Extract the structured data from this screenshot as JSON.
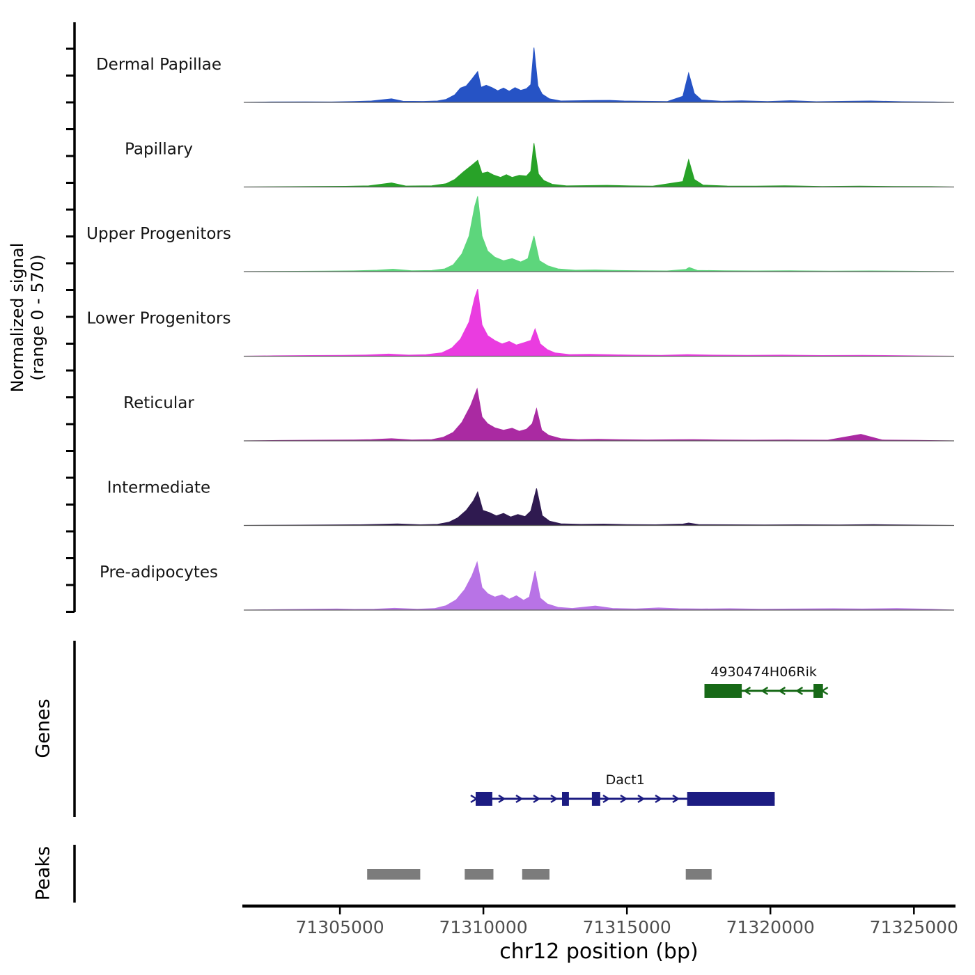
{
  "figure": {
    "y_axis_label_line1": "Normalized signal",
    "y_axis_label_line2": "(range 0 - 570)",
    "genes_section_label": "Genes",
    "peaks_section_label": "Peaks",
    "x_axis_title": "chr12 position (bp)",
    "colors": {
      "background": "#ffffff",
      "axis": "#000000",
      "track_baseline": "#5e5e5e",
      "tick_label": "#4f4f4f",
      "peak_region": "#7c7c7c"
    }
  },
  "chart_data": {
    "type": "area",
    "chromosome": "chr12",
    "x_domain": [
      71301650,
      71326400
    ],
    "x_ticks": [
      71305000,
      71310000,
      71315000,
      71320000,
      71325000
    ],
    "x_tick_labels": [
      "71305000",
      "71310000",
      "71315000",
      "71320000",
      "71325000"
    ],
    "xlabel": "chr12 position (bp)",
    "ylabel": "Normalized signal (range 0 - 570)",
    "y_range_per_track": [
      0,
      570
    ],
    "grid": false,
    "tracks": [
      {
        "name": "Dermal Papillae",
        "color": "#2653c5",
        "points": [
          [
            71302600,
            3
          ],
          [
            71303800,
            4
          ],
          [
            71304700,
            3
          ],
          [
            71305500,
            6
          ],
          [
            71306100,
            10
          ],
          [
            71306800,
            26
          ],
          [
            71307200,
            8
          ],
          [
            71307900,
            7
          ],
          [
            71308400,
            10
          ],
          [
            71308700,
            22
          ],
          [
            71309000,
            55
          ],
          [
            71309200,
            105
          ],
          [
            71309400,
            120
          ],
          [
            71309600,
            170
          ],
          [
            71309800,
            225
          ],
          [
            71309920,
            110
          ],
          [
            71310100,
            125
          ],
          [
            71310300,
            108
          ],
          [
            71310500,
            85
          ],
          [
            71310700,
            105
          ],
          [
            71310900,
            82
          ],
          [
            71311100,
            108
          ],
          [
            71311300,
            88
          ],
          [
            71311500,
            100
          ],
          [
            71311650,
            130
          ],
          [
            71311760,
            400
          ],
          [
            71311900,
            120
          ],
          [
            71312050,
            60
          ],
          [
            71312300,
            26
          ],
          [
            71312700,
            10
          ],
          [
            71313300,
            12
          ],
          [
            71313900,
            14
          ],
          [
            71314400,
            15
          ],
          [
            71314900,
            10
          ],
          [
            71315600,
            8
          ],
          [
            71316400,
            6
          ],
          [
            71316950,
            45
          ],
          [
            71317150,
            215
          ],
          [
            71317350,
            65
          ],
          [
            71317600,
            18
          ],
          [
            71318300,
            8
          ],
          [
            71319000,
            11
          ],
          [
            71319900,
            6
          ],
          [
            71320700,
            12
          ],
          [
            71321600,
            5
          ],
          [
            71322700,
            8
          ],
          [
            71323500,
            10
          ],
          [
            71324600,
            5
          ],
          [
            71325700,
            3
          ]
        ]
      },
      {
        "name": "Papillary",
        "color": "#28a228",
        "points": [
          [
            71302800,
            2
          ],
          [
            71304100,
            4
          ],
          [
            71305200,
            5
          ],
          [
            71306000,
            8
          ],
          [
            71306800,
            30
          ],
          [
            71307300,
            7
          ],
          [
            71308200,
            9
          ],
          [
            71308700,
            24
          ],
          [
            71309000,
            55
          ],
          [
            71309300,
            110
          ],
          [
            71309600,
            160
          ],
          [
            71309800,
            195
          ],
          [
            71309950,
            100
          ],
          [
            71310150,
            110
          ],
          [
            71310350,
            88
          ],
          [
            71310600,
            70
          ],
          [
            71310800,
            90
          ],
          [
            71311000,
            70
          ],
          [
            71311250,
            85
          ],
          [
            71311500,
            80
          ],
          [
            71311650,
            115
          ],
          [
            71311760,
            320
          ],
          [
            71311920,
            95
          ],
          [
            71312100,
            48
          ],
          [
            71312400,
            20
          ],
          [
            71312900,
            8
          ],
          [
            71313600,
            10
          ],
          [
            71314300,
            12
          ],
          [
            71315100,
            8
          ],
          [
            71315900,
            6
          ],
          [
            71316950,
            40
          ],
          [
            71317150,
            200
          ],
          [
            71317350,
            55
          ],
          [
            71317650,
            14
          ],
          [
            71318500,
            7
          ],
          [
            71319500,
            6
          ],
          [
            71320500,
            9
          ],
          [
            71321800,
            4
          ],
          [
            71323100,
            6
          ],
          [
            71324300,
            4
          ],
          [
            71325600,
            3
          ]
        ]
      },
      {
        "name": "Upper Progenitors",
        "color": "#5dd67c",
        "points": [
          [
            71303000,
            2
          ],
          [
            71304500,
            4
          ],
          [
            71305600,
            6
          ],
          [
            71306300,
            10
          ],
          [
            71306850,
            18
          ],
          [
            71307500,
            6
          ],
          [
            71308200,
            8
          ],
          [
            71308650,
            20
          ],
          [
            71308950,
            50
          ],
          [
            71309250,
            130
          ],
          [
            71309500,
            260
          ],
          [
            71309700,
            480
          ],
          [
            71309800,
            550
          ],
          [
            71309950,
            260
          ],
          [
            71310150,
            150
          ],
          [
            71310400,
            105
          ],
          [
            71310700,
            80
          ],
          [
            71311000,
            95
          ],
          [
            71311300,
            70
          ],
          [
            71311550,
            95
          ],
          [
            71311760,
            260
          ],
          [
            71311950,
            80
          ],
          [
            71312250,
            42
          ],
          [
            71312600,
            20
          ],
          [
            71313200,
            10
          ],
          [
            71313900,
            12
          ],
          [
            71314700,
            8
          ],
          [
            71315500,
            6
          ],
          [
            71316400,
            5
          ],
          [
            71317050,
            16
          ],
          [
            71317170,
            30
          ],
          [
            71317450,
            9
          ],
          [
            71318400,
            6
          ],
          [
            71319500,
            5
          ],
          [
            71320700,
            6
          ],
          [
            71322100,
            4
          ],
          [
            71323500,
            5
          ],
          [
            71324900,
            3
          ]
        ]
      },
      {
        "name": "Lower Progenitors",
        "color": "#ea3ce0",
        "points": [
          [
            71302700,
            3
          ],
          [
            71304000,
            5
          ],
          [
            71305100,
            6
          ],
          [
            71305900,
            9
          ],
          [
            71306700,
            16
          ],
          [
            71307400,
            8
          ],
          [
            71308000,
            11
          ],
          [
            71308550,
            25
          ],
          [
            71308900,
            60
          ],
          [
            71309200,
            125
          ],
          [
            71309500,
            250
          ],
          [
            71309700,
            430
          ],
          [
            71309800,
            490
          ],
          [
            71309950,
            230
          ],
          [
            71310150,
            150
          ],
          [
            71310400,
            115
          ],
          [
            71310650,
            90
          ],
          [
            71310900,
            108
          ],
          [
            71311150,
            82
          ],
          [
            71311400,
            98
          ],
          [
            71311650,
            115
          ],
          [
            71311800,
            200
          ],
          [
            71311980,
            90
          ],
          [
            71312230,
            48
          ],
          [
            71312500,
            24
          ],
          [
            71313000,
            12
          ],
          [
            71313700,
            14
          ],
          [
            71314400,
            11
          ],
          [
            71315200,
            8
          ],
          [
            71316200,
            6
          ],
          [
            71317100,
            12
          ],
          [
            71318000,
            8
          ],
          [
            71319200,
            6
          ],
          [
            71320400,
            8
          ],
          [
            71321800,
            5
          ],
          [
            71323200,
            6
          ],
          [
            71324600,
            4
          ]
        ]
      },
      {
        "name": "Reticular",
        "color": "#aa2aa2",
        "points": [
          [
            71302900,
            3
          ],
          [
            71304300,
            5
          ],
          [
            71305400,
            6
          ],
          [
            71306100,
            9
          ],
          [
            71306800,
            16
          ],
          [
            71307500,
            6
          ],
          [
            71308200,
            9
          ],
          [
            71308600,
            26
          ],
          [
            71308950,
            62
          ],
          [
            71309250,
            135
          ],
          [
            71309550,
            255
          ],
          [
            71309780,
            380
          ],
          [
            71309950,
            175
          ],
          [
            71310150,
            125
          ],
          [
            71310400,
            95
          ],
          [
            71310700,
            78
          ],
          [
            71311000,
            92
          ],
          [
            71311250,
            70
          ],
          [
            71311500,
            85
          ],
          [
            71311700,
            125
          ],
          [
            71311850,
            235
          ],
          [
            71312030,
            78
          ],
          [
            71312280,
            40
          ],
          [
            71312700,
            16
          ],
          [
            71313300,
            9
          ],
          [
            71314000,
            11
          ],
          [
            71314800,
            8
          ],
          [
            71315700,
            6
          ],
          [
            71316700,
            8
          ],
          [
            71317300,
            9
          ],
          [
            71318200,
            6
          ],
          [
            71319400,
            5
          ],
          [
            71320600,
            6
          ],
          [
            71322000,
            5
          ],
          [
            71323150,
            48
          ],
          [
            71323900,
            6
          ],
          [
            71325100,
            4
          ]
        ]
      },
      {
        "name": "Intermediate",
        "color": "#2f1a50",
        "points": [
          [
            71303100,
            2
          ],
          [
            71304600,
            4
          ],
          [
            71305700,
            5
          ],
          [
            71306400,
            8
          ],
          [
            71307000,
            11
          ],
          [
            71307800,
            5
          ],
          [
            71308400,
            8
          ],
          [
            71308800,
            24
          ],
          [
            71309100,
            55
          ],
          [
            71309400,
            110
          ],
          [
            71309650,
            180
          ],
          [
            71309800,
            245
          ],
          [
            71309980,
            110
          ],
          [
            71310200,
            95
          ],
          [
            71310450,
            70
          ],
          [
            71310700,
            88
          ],
          [
            71310950,
            62
          ],
          [
            71311200,
            80
          ],
          [
            71311450,
            65
          ],
          [
            71311650,
            105
          ],
          [
            71311850,
            270
          ],
          [
            71312050,
            72
          ],
          [
            71312300,
            32
          ],
          [
            71312700,
            12
          ],
          [
            71313400,
            8
          ],
          [
            71314200,
            10
          ],
          [
            71315000,
            6
          ],
          [
            71316000,
            5
          ],
          [
            71316950,
            10
          ],
          [
            71317150,
            18
          ],
          [
            71317500,
            6
          ],
          [
            71318600,
            5
          ],
          [
            71319800,
            4
          ],
          [
            71321000,
            5
          ],
          [
            71322400,
            4
          ],
          [
            71323600,
            6
          ],
          [
            71325000,
            3
          ]
        ]
      },
      {
        "name": "Pre-adipocytes",
        "color": "#b873e6",
        "points": [
          [
            71302700,
            3
          ],
          [
            71304100,
            6
          ],
          [
            71304900,
            8
          ],
          [
            71305500,
            5
          ],
          [
            71306200,
            6
          ],
          [
            71306900,
            13
          ],
          [
            71307700,
            6
          ],
          [
            71308300,
            11
          ],
          [
            71308700,
            32
          ],
          [
            71309050,
            75
          ],
          [
            71309350,
            150
          ],
          [
            71309600,
            250
          ],
          [
            71309780,
            350
          ],
          [
            71309950,
            165
          ],
          [
            71310150,
            120
          ],
          [
            71310400,
            95
          ],
          [
            71310650,
            112
          ],
          [
            71310900,
            80
          ],
          [
            71311150,
            105
          ],
          [
            71311400,
            72
          ],
          [
            71311600,
            95
          ],
          [
            71311800,
            285
          ],
          [
            71311980,
            88
          ],
          [
            71312230,
            45
          ],
          [
            71312600,
            20
          ],
          [
            71313100,
            12
          ],
          [
            71313900,
            30
          ],
          [
            71314500,
            12
          ],
          [
            71315300,
            8
          ],
          [
            71316100,
            16
          ],
          [
            71316800,
            10
          ],
          [
            71317600,
            8
          ],
          [
            71318600,
            10
          ],
          [
            71319700,
            6
          ],
          [
            71320800,
            8
          ],
          [
            71322200,
            10
          ],
          [
            71323200,
            8
          ],
          [
            71324400,
            11
          ],
          [
            71325600,
            6
          ]
        ]
      }
    ],
    "genes": [
      {
        "name": "4930474H06Rik",
        "color": "#176917",
        "strand": "-",
        "start": 71317700,
        "end": 71321830,
        "exons": [
          [
            71317700,
            71319000
          ],
          [
            71321500,
            71321830
          ]
        ]
      },
      {
        "name": "Dact1",
        "color": "#1c1c82",
        "strand": "+",
        "start": 71309730,
        "end": 71320150,
        "exons": [
          [
            71309730,
            71310310
          ],
          [
            71312740,
            71312980
          ],
          [
            71313780,
            71314070
          ],
          [
            71317100,
            71320150
          ]
        ]
      }
    ],
    "peaks": [
      [
        71305950,
        71307800
      ],
      [
        71309350,
        71310350
      ],
      [
        71311350,
        71312300
      ],
      [
        71317050,
        71317950
      ]
    ]
  }
}
